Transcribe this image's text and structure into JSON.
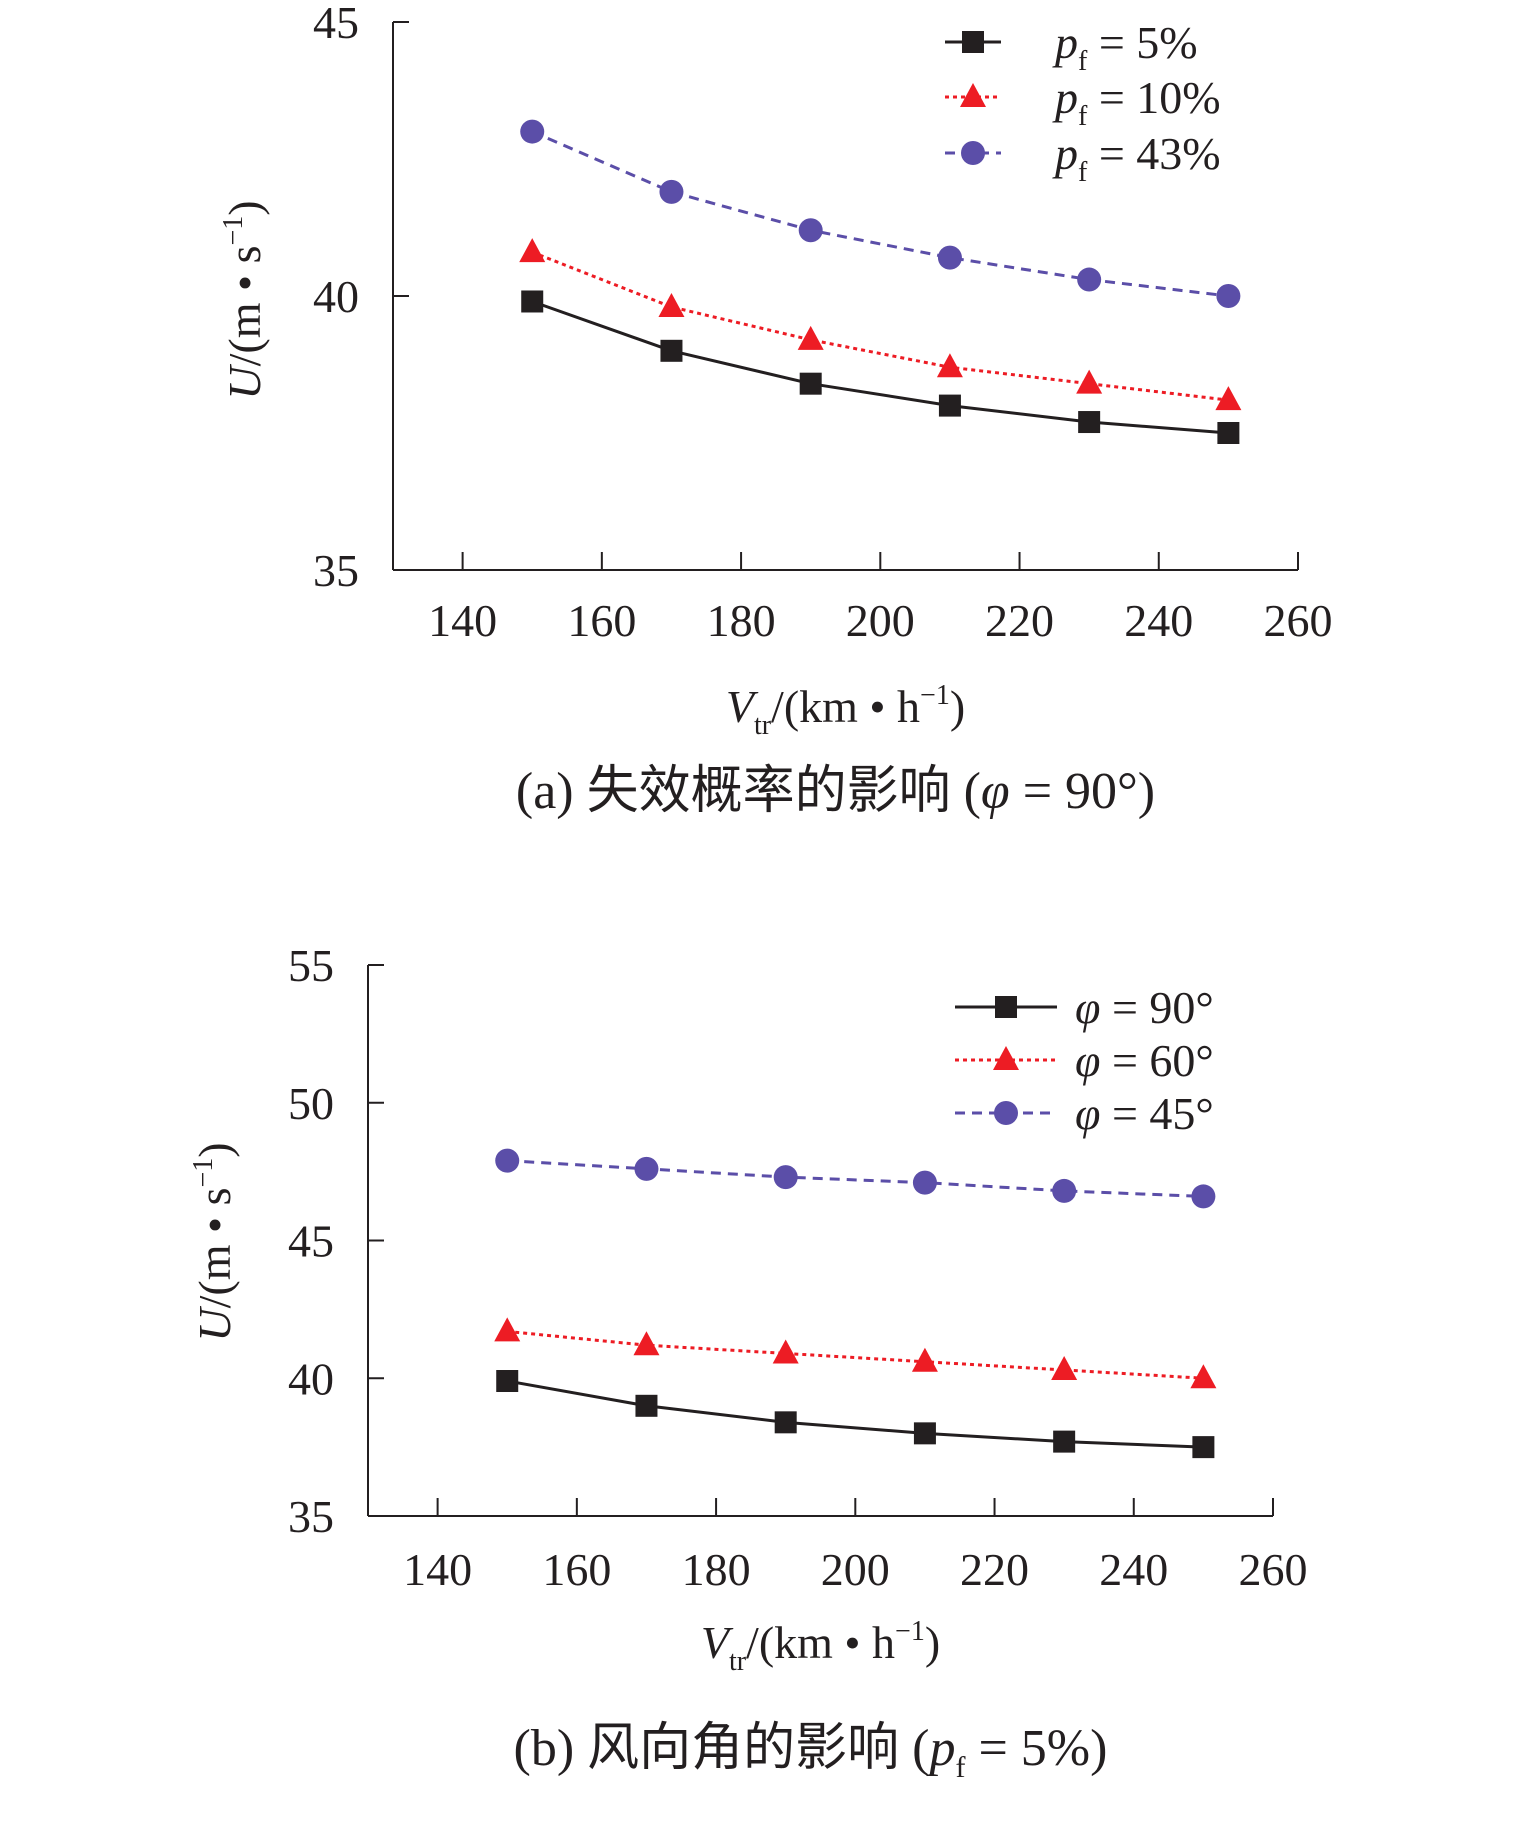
{
  "chart_data": [
    {
      "type": "line",
      "title": "(a) 失效概率的影响 (φ = 90°)",
      "caption": {
        "prefix": "(a) 失效概率的影响 (",
        "var": "φ",
        "suffix": " = 90°)"
      },
      "xlabel": {
        "var": "V",
        "sub": "tr",
        "unit": "/(km • h",
        "sup": "−1",
        "close": ")"
      },
      "ylabel": {
        "var": "U",
        "unit": "/(m • s",
        "sup": "−1",
        "close": ")"
      },
      "xlim": [
        130,
        260
      ],
      "ylim": [
        35,
        45
      ],
      "xticks": [
        140,
        160,
        180,
        200,
        220,
        240,
        260
      ],
      "yticks": [
        35,
        40,
        45
      ],
      "legend_position": "top-right",
      "x": [
        150,
        170,
        190,
        210,
        230,
        250
      ],
      "series": [
        {
          "name": "p_f = 5%",
          "legend": {
            "var": "p",
            "sub": "f",
            "rest": " = 5%"
          },
          "marker": "square",
          "line": "solid",
          "color": "#231f20",
          "values": [
            39.9,
            39.0,
            38.4,
            38.0,
            37.7,
            37.5
          ]
        },
        {
          "name": "p_f = 10%",
          "legend": {
            "var": "p",
            "sub": "f",
            "rest": " = 10%"
          },
          "marker": "triangle",
          "line": "dotted",
          "color": "#ed1c24",
          "values": [
            40.8,
            39.8,
            39.2,
            38.7,
            38.4,
            38.1
          ]
        },
        {
          "name": "p_f = 43%",
          "legend": {
            "var": "p",
            "sub": "f",
            "rest": " = 43%"
          },
          "marker": "circle",
          "line": "dashed",
          "color": "#5b4ea8",
          "values": [
            43.0,
            41.9,
            41.2,
            40.7,
            40.3,
            40.0
          ]
        }
      ]
    },
    {
      "type": "line",
      "title": "(b) 风向角的影响 (p_f = 5%)",
      "caption": {
        "prefix": "(b) 风向角的影响 (",
        "var": "p",
        "sub": "f",
        "suffix": " = 5%)"
      },
      "xlabel": {
        "var": "V",
        "sub": "tr",
        "unit": "/(km • h",
        "sup": "−1",
        "close": ")"
      },
      "ylabel": {
        "var": "U",
        "unit": "/(m • s",
        "sup": "−1",
        "close": ")"
      },
      "xlim": [
        130,
        260
      ],
      "ylim": [
        35,
        55
      ],
      "xticks": [
        140,
        160,
        180,
        200,
        220,
        240,
        260
      ],
      "yticks": [
        35,
        40,
        45,
        50,
        55
      ],
      "legend_position": "top-right",
      "x": [
        150,
        170,
        190,
        210,
        230,
        250
      ],
      "series": [
        {
          "name": "φ = 90°",
          "legend": {
            "var": "φ",
            "sub": "",
            "rest": " = 90°"
          },
          "marker": "square",
          "line": "solid",
          "color": "#231f20",
          "values": [
            39.9,
            39.0,
            38.4,
            38.0,
            37.7,
            37.5
          ]
        },
        {
          "name": "φ = 60°",
          "legend": {
            "var": "φ",
            "sub": "",
            "rest": " = 60°"
          },
          "marker": "triangle",
          "line": "dotted",
          "color": "#ed1c24",
          "values": [
            41.7,
            41.2,
            40.9,
            40.6,
            40.3,
            40.0
          ]
        },
        {
          "name": "φ = 45°",
          "legend": {
            "var": "φ",
            "sub": "",
            "rest": " = 45°"
          },
          "marker": "circle",
          "line": "dashed",
          "color": "#5b4ea8",
          "values": [
            47.9,
            47.6,
            47.3,
            47.1,
            46.8,
            46.6
          ]
        }
      ]
    }
  ]
}
